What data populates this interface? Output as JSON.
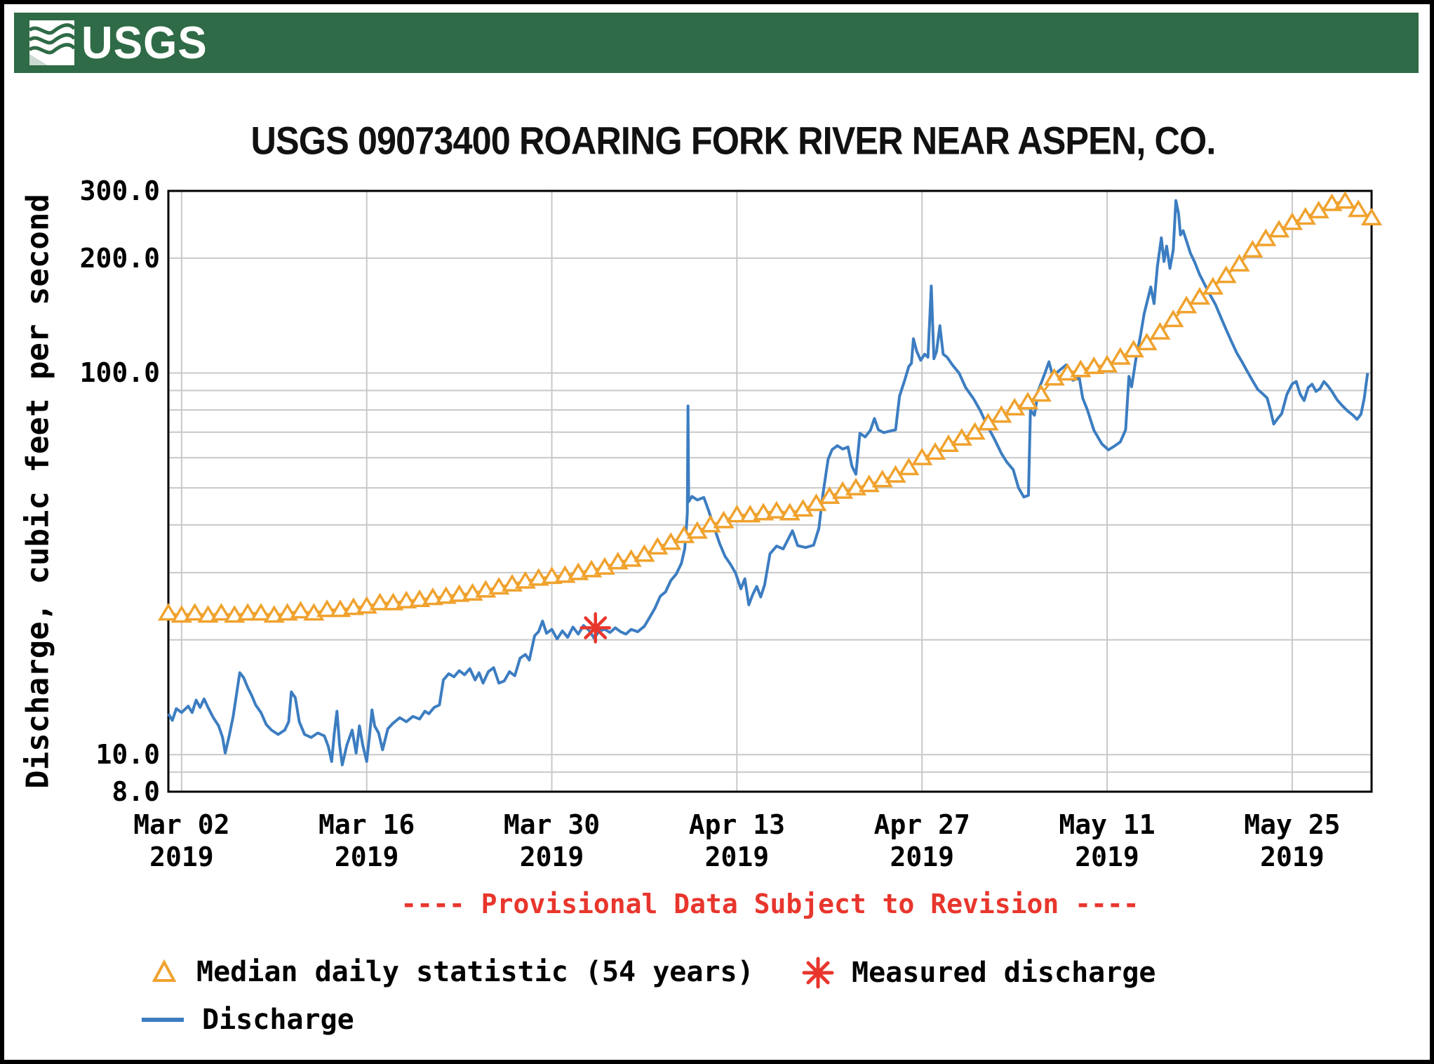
{
  "banner": {
    "logo_text": "USGS"
  },
  "provisional_note": "---- Provisional Data Subject to Revision ----",
  "legend": {
    "median_label": "Median daily statistic (54 years)",
    "measured_label": "Measured discharge",
    "discharge_label": "Discharge"
  },
  "chart_data": {
    "type": "line",
    "title": "USGS 09073400 ROARING FORK RIVER NEAR ASPEN, CO.",
    "xlabel": "",
    "ylabel": "Discharge, cubic feet per second",
    "y_scale": "log",
    "ylim": [
      8,
      300
    ],
    "xlim_days": [
      0,
      91
    ],
    "x_start_date": "2019-03-01",
    "grid": true,
    "gridlines_y": [
      9,
      10,
      20,
      30,
      40,
      50,
      60,
      70,
      80,
      90,
      100,
      200
    ],
    "y_ticks": [
      {
        "label": "300.0",
        "value": 300
      },
      {
        "label": "200.0",
        "value": 200
      },
      {
        "label": "100.0",
        "value": 100
      },
      {
        "label": "10.0",
        "value": 10
      },
      {
        "label": "8.0",
        "value": 8
      }
    ],
    "x_ticks": [
      {
        "label": "Mar 02",
        "year": "2019",
        "day": 1
      },
      {
        "label": "Mar 16",
        "year": "2019",
        "day": 15
      },
      {
        "label": "Mar 30",
        "year": "2019",
        "day": 29
      },
      {
        "label": "Apr 13",
        "year": "2019",
        "day": 43
      },
      {
        "label": "Apr 27",
        "year": "2019",
        "day": 57
      },
      {
        "label": "May 11",
        "year": "2019",
        "day": 71
      },
      {
        "label": "May 25",
        "year": "2019",
        "day": 85
      }
    ],
    "colors": {
      "discharge": "#3C7DC1",
      "median": "#F0A22E",
      "measured": "#E8362D",
      "grid": "#C8C8C8",
      "axis": "#000000",
      "banner_green": "#2E6B46"
    },
    "series": [
      {
        "name": "Median daily statistic (54 years)",
        "type": "triangle-markers",
        "color": "#F0A22E",
        "start_day": 0,
        "daily_values": [
          23.5,
          23.2,
          23.5,
          23.2,
          23.5,
          23.2,
          23.5,
          23.5,
          23.2,
          23.5,
          23.8,
          23.5,
          24,
          24,
          24.3,
          24.5,
          25,
          25,
          25.3,
          25.5,
          25.8,
          26,
          26.3,
          26.5,
          27,
          27.5,
          28,
          28.5,
          29,
          29.3,
          29.5,
          30,
          30.5,
          31,
          32,
          32.5,
          33.5,
          35,
          36,
          37.5,
          38.5,
          40,
          41,
          42.5,
          42.5,
          43,
          43.5,
          43,
          44,
          45.5,
          47.5,
          49,
          50,
          51,
          52.5,
          54,
          56.5,
          60,
          62,
          65,
          67.5,
          70,
          74,
          77.5,
          81,
          84,
          88,
          97,
          100,
          102,
          104,
          105,
          110,
          115,
          120,
          128,
          138,
          150,
          158,
          168,
          180,
          193,
          210,
          225,
          237,
          248,
          256,
          266,
          278,
          282,
          268,
          255
        ]
      },
      {
        "name": "Measured discharge",
        "type": "asterisk-marker",
        "color": "#E8362D",
        "points": [
          [
            32.3,
            21.5
          ]
        ]
      },
      {
        "name": "Discharge",
        "type": "line",
        "color": "#3C7DC1",
        "points": [
          [
            0,
            12.8
          ],
          [
            0.3,
            12.3
          ],
          [
            0.6,
            13.2
          ],
          [
            1,
            12.9
          ],
          [
            1.5,
            13.4
          ],
          [
            1.8,
            12.9
          ],
          [
            2.1,
            13.9
          ],
          [
            2.4,
            13.3
          ],
          [
            2.7,
            14.0
          ],
          [
            3,
            13.3
          ],
          [
            3.4,
            12.5
          ],
          [
            3.8,
            11.9
          ],
          [
            4.1,
            11.1
          ],
          [
            4.3,
            10.1
          ],
          [
            4.6,
            11.2
          ],
          [
            4.9,
            12.6
          ],
          [
            5.1,
            14.0
          ],
          [
            5.4,
            16.4
          ],
          [
            5.7,
            15.9
          ],
          [
            6,
            15.0
          ],
          [
            6.3,
            14.3
          ],
          [
            6.6,
            13.5
          ],
          [
            7,
            12.9
          ],
          [
            7.4,
            12.0
          ],
          [
            7.8,
            11.6
          ],
          [
            8.3,
            11.3
          ],
          [
            8.8,
            11.6
          ],
          [
            9.1,
            12.2
          ],
          [
            9.3,
            14.6
          ],
          [
            9.6,
            14.1
          ],
          [
            9.9,
            12.2
          ],
          [
            10.3,
            11.3
          ],
          [
            10.8,
            11.1
          ],
          [
            11.3,
            11.4
          ],
          [
            11.8,
            11.2
          ],
          [
            12.1,
            10.5
          ],
          [
            12.35,
            9.6
          ],
          [
            12.55,
            11.4
          ],
          [
            12.75,
            13.0
          ],
          [
            12.95,
            10.6
          ],
          [
            13.15,
            9.4
          ],
          [
            13.5,
            10.6
          ],
          [
            13.9,
            11.6
          ],
          [
            14.2,
            10.1
          ],
          [
            14.45,
            11.9
          ],
          [
            14.7,
            10.6
          ],
          [
            15,
            9.6
          ],
          [
            15.2,
            11.1
          ],
          [
            15.4,
            13.1
          ],
          [
            15.6,
            11.9
          ],
          [
            15.9,
            11.4
          ],
          [
            16.2,
            10.3
          ],
          [
            16.6,
            11.7
          ],
          [
            17,
            12.1
          ],
          [
            17.5,
            12.5
          ],
          [
            18,
            12.2
          ],
          [
            18.5,
            12.6
          ],
          [
            19,
            12.4
          ],
          [
            19.4,
            13.0
          ],
          [
            19.7,
            12.8
          ],
          [
            20.1,
            13.3
          ],
          [
            20.5,
            13.5
          ],
          [
            20.8,
            15.7
          ],
          [
            21.2,
            16.3
          ],
          [
            21.6,
            16.0
          ],
          [
            22,
            16.6
          ],
          [
            22.4,
            16.2
          ],
          [
            22.8,
            16.8
          ],
          [
            23.2,
            15.7
          ],
          [
            23.5,
            16.4
          ],
          [
            23.8,
            15.4
          ],
          [
            24.2,
            16.5
          ],
          [
            24.6,
            16.9
          ],
          [
            25,
            15.4
          ],
          [
            25.4,
            15.6
          ],
          [
            25.8,
            16.5
          ],
          [
            26.2,
            16.1
          ],
          [
            26.6,
            17.9
          ],
          [
            27,
            18.3
          ],
          [
            27.3,
            17.7
          ],
          [
            27.7,
            20.5
          ],
          [
            28,
            21.0
          ],
          [
            28.3,
            22.4
          ],
          [
            28.6,
            20.8
          ],
          [
            29,
            21.3
          ],
          [
            29.4,
            20.1
          ],
          [
            29.8,
            21.1
          ],
          [
            30.2,
            20.3
          ],
          [
            30.6,
            21.6
          ],
          [
            31,
            20.7
          ],
          [
            31.4,
            21.8
          ],
          [
            31.8,
            21.2
          ],
          [
            32.2,
            20.2
          ],
          [
            32.6,
            21.1
          ],
          [
            33,
            21.3
          ],
          [
            33.4,
            20.9
          ],
          [
            33.8,
            21.5
          ],
          [
            34.2,
            21.0
          ],
          [
            34.6,
            20.7
          ],
          [
            35,
            21.3
          ],
          [
            35.5,
            21.0
          ],
          [
            36,
            21.7
          ],
          [
            36.4,
            22.9
          ],
          [
            36.8,
            24.2
          ],
          [
            37.2,
            26.0
          ],
          [
            37.6,
            26.7
          ],
          [
            38,
            28.6
          ],
          [
            38.4,
            29.7
          ],
          [
            38.8,
            31.7
          ],
          [
            39.05,
            34.6
          ],
          [
            39.15,
            37.9
          ],
          [
            39.25,
            43
          ],
          [
            39.3,
            82
          ],
          [
            39.35,
            46
          ],
          [
            39.6,
            47.5
          ],
          [
            40,
            46.5
          ],
          [
            40.5,
            47.2
          ],
          [
            40.9,
            43.2
          ],
          [
            41.3,
            39.2
          ],
          [
            41.7,
            35.7
          ],
          [
            42.1,
            33.1
          ],
          [
            42.5,
            31.6
          ],
          [
            42.9,
            29.9
          ],
          [
            43.3,
            27.2
          ],
          [
            43.6,
            28.9
          ],
          [
            43.9,
            24.7
          ],
          [
            44.2,
            26.3
          ],
          [
            44.5,
            27.6
          ],
          [
            44.8,
            25.9
          ],
          [
            45.1,
            27.9
          ],
          [
            45.5,
            33.6
          ],
          [
            46,
            35.2
          ],
          [
            46.5,
            34.6
          ],
          [
            47.2,
            38.6
          ],
          [
            47.6,
            35.3
          ],
          [
            48.2,
            34.9
          ],
          [
            48.8,
            35.4
          ],
          [
            49.2,
            39.2
          ],
          [
            49.5,
            48
          ],
          [
            49.9,
            59.5
          ],
          [
            50.2,
            63
          ],
          [
            50.6,
            64.5
          ],
          [
            51,
            63.2
          ],
          [
            51.4,
            64.0
          ],
          [
            51.7,
            57
          ],
          [
            52,
            54.3
          ],
          [
            52.3,
            69.5
          ],
          [
            52.7,
            68
          ],
          [
            53.1,
            70.8
          ],
          [
            53.4,
            76
          ],
          [
            53.7,
            71
          ],
          [
            54.1,
            69.8
          ],
          [
            54.6,
            70.5
          ],
          [
            55,
            71
          ],
          [
            55.3,
            87
          ],
          [
            55.7,
            96
          ],
          [
            56,
            104
          ],
          [
            56.2,
            106
          ],
          [
            56.35,
            123
          ],
          [
            56.6,
            114
          ],
          [
            56.9,
            108
          ],
          [
            57.2,
            112
          ],
          [
            57.45,
            110
          ],
          [
            57.7,
            169
          ],
          [
            57.9,
            109
          ],
          [
            58.1,
            114
          ],
          [
            58.35,
            133
          ],
          [
            58.6,
            112
          ],
          [
            58.9,
            110
          ],
          [
            59.3,
            105
          ],
          [
            59.8,
            100
          ],
          [
            60.3,
            91.6
          ],
          [
            60.9,
            85.6
          ],
          [
            61.4,
            79.8
          ],
          [
            61.9,
            73.2
          ],
          [
            62.5,
            66.9
          ],
          [
            63,
            61.6
          ],
          [
            63.4,
            58.5
          ],
          [
            63.9,
            55.8
          ],
          [
            64.3,
            50
          ],
          [
            64.7,
            47.3
          ],
          [
            65.05,
            47.8
          ],
          [
            65.2,
            80
          ],
          [
            65.5,
            77.5
          ],
          [
            65.8,
            90
          ],
          [
            66.3,
            100
          ],
          [
            66.6,
            107
          ],
          [
            66.9,
            97.8
          ],
          [
            67.3,
            101
          ],
          [
            67.9,
            105
          ],
          [
            68.4,
            95.7
          ],
          [
            68.9,
            97
          ],
          [
            69.15,
            86
          ],
          [
            69.5,
            80.2
          ],
          [
            70,
            70.8
          ],
          [
            70.6,
            65.2
          ],
          [
            71.1,
            62.9
          ],
          [
            71.6,
            64.5
          ],
          [
            72,
            66
          ],
          [
            72.4,
            71
          ],
          [
            72.65,
            98
          ],
          [
            72.85,
            92
          ],
          [
            73.2,
            110
          ],
          [
            73.5,
            124
          ],
          [
            73.8,
            143
          ],
          [
            74.05,
            155
          ],
          [
            74.3,
            168
          ],
          [
            74.55,
            152
          ],
          [
            74.8,
            190
          ],
          [
            75.1,
            226
          ],
          [
            75.3,
            196
          ],
          [
            75.5,
            215
          ],
          [
            75.75,
            188
          ],
          [
            76,
            210
          ],
          [
            76.2,
            283
          ],
          [
            76.4,
            262
          ],
          [
            76.55,
            230
          ],
          [
            76.75,
            236
          ],
          [
            77,
            222
          ],
          [
            77.3,
            206
          ],
          [
            77.6,
            196
          ],
          [
            78,
            181
          ],
          [
            78.4,
            170
          ],
          [
            78.8,
            160
          ],
          [
            79.2,
            151
          ],
          [
            79.6,
            140
          ],
          [
            80,
            130
          ],
          [
            80.4,
            121
          ],
          [
            80.8,
            113
          ],
          [
            81.2,
            107
          ],
          [
            81.6,
            101
          ],
          [
            82,
            95.5
          ],
          [
            82.4,
            90.5
          ],
          [
            82.8,
            88
          ],
          [
            83.1,
            86
          ],
          [
            83.35,
            80
          ],
          [
            83.6,
            73.5
          ],
          [
            83.9,
            76
          ],
          [
            84.2,
            78.2
          ],
          [
            84.6,
            88
          ],
          [
            85,
            93.6
          ],
          [
            85.3,
            95
          ],
          [
            85.6,
            88
          ],
          [
            85.9,
            84.7
          ],
          [
            86.2,
            91.5
          ],
          [
            86.5,
            93.5
          ],
          [
            86.8,
            89.5
          ],
          [
            87.1,
            91
          ],
          [
            87.4,
            95
          ],
          [
            87.7,
            92.5
          ],
          [
            88,
            89.5
          ],
          [
            88.4,
            85
          ],
          [
            88.8,
            82
          ],
          [
            89.2,
            79.5
          ],
          [
            89.6,
            77.5
          ],
          [
            89.9,
            75.6
          ],
          [
            90.2,
            78
          ],
          [
            90.45,
            86
          ],
          [
            90.7,
            100
          ]
        ]
      }
    ]
  }
}
